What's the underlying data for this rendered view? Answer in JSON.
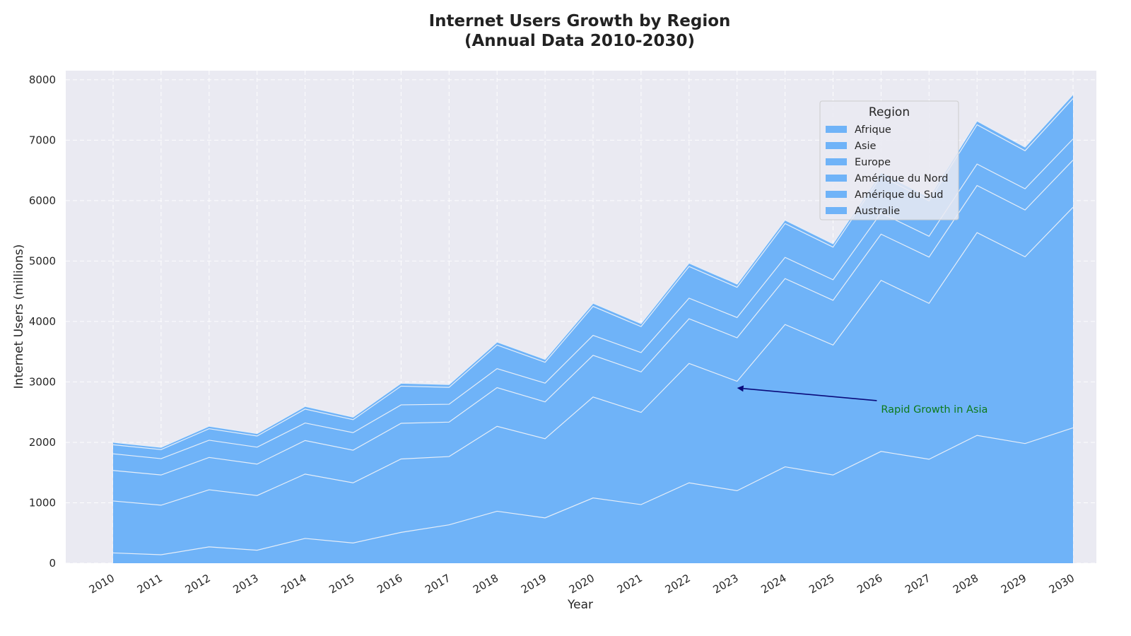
{
  "chart_data": {
    "type": "area",
    "stacked": true,
    "title_line1": "Internet Users Growth by Region",
    "title_line2": "(Annual Data 2010-2030)",
    "xlabel": "Year",
    "ylabel": "Internet Users (millions)",
    "ylim": [
      0,
      8150
    ],
    "yticks": [
      0,
      1000,
      2000,
      3000,
      4000,
      5000,
      6000,
      7000,
      8000
    ],
    "grid": true,
    "x": [
      "2010",
      "2011",
      "2012",
      "2013",
      "2014",
      "2015",
      "2016",
      "2017",
      "2018",
      "2019",
      "2020",
      "2021",
      "2022",
      "2023",
      "2024",
      "2025",
      "2026",
      "2027",
      "2028",
      "2029",
      "2030"
    ],
    "legend": {
      "title": "Region",
      "placement": "upper-right"
    },
    "series": [
      {
        "name": "Afrique",
        "values": [
          170,
          140,
          270,
          215,
          410,
          335,
          510,
          635,
          860,
          750,
          1080,
          970,
          1330,
          1200,
          1595,
          1460,
          1850,
          1720,
          2115,
          1980,
          2240
        ]
      },
      {
        "name": "Asie",
        "values": [
          860,
          820,
          945,
          905,
          1065,
          995,
          1215,
          1130,
          1405,
          1310,
          1670,
          1525,
          1975,
          1810,
          2355,
          2150,
          2830,
          2580,
          3355,
          3090,
          3650
        ]
      },
      {
        "name": "Europe",
        "values": [
          505,
          500,
          535,
          520,
          555,
          540,
          590,
          570,
          640,
          610,
          690,
          670,
          740,
          720,
          760,
          740,
          765,
          765,
          780,
          775,
          780
        ]
      },
      {
        "name": "Amérique du Nord",
        "values": [
          275,
          270,
          285,
          280,
          290,
          290,
          305,
          295,
          315,
          310,
          330,
          320,
          340,
          335,
          350,
          340,
          350,
          345,
          355,
          350,
          350
        ]
      },
      {
        "name": "Amérique du Sud",
        "values": [
          150,
          150,
          190,
          185,
          230,
          215,
          310,
          280,
          390,
          345,
          480,
          430,
          525,
          500,
          560,
          540,
          610,
          585,
          650,
          630,
          670
        ]
      },
      {
        "name": "Australie",
        "values": [
          40,
          38,
          42,
          40,
          45,
          43,
          48,
          46,
          50,
          48,
          52,
          50,
          55,
          53,
          58,
          56,
          60,
          58,
          62,
          60,
          65
        ]
      }
    ],
    "series_color": "#6fb3f8",
    "edge_color": "#e6eef8",
    "background_color": "#eaeaf2",
    "annotation": {
      "text": "Rapid Growth in Asia",
      "x": "2023",
      "y": 2900,
      "text_x": "2026",
      "text_y": 2550,
      "text_color": "#0d7a1a",
      "arrow_color": "#0a0a7a"
    }
  }
}
